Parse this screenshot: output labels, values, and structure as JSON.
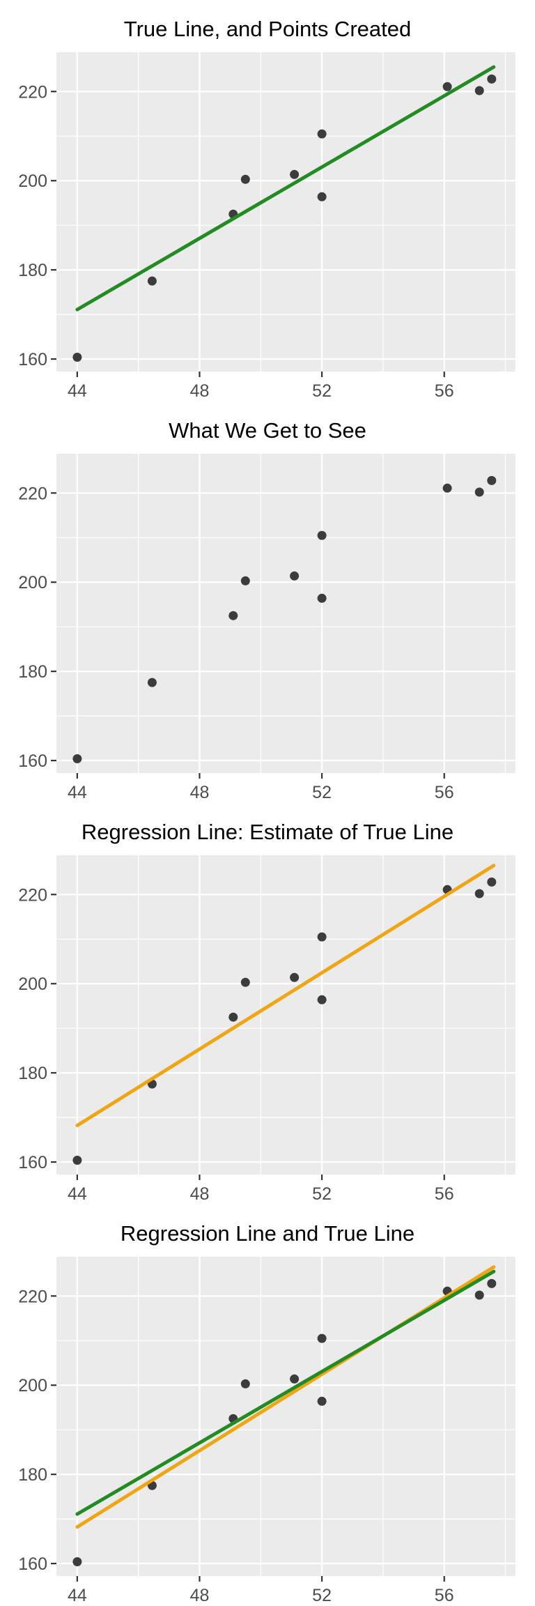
{
  "colors": {
    "true_line": "#228B22",
    "regression_line": "#F0A614",
    "point": "#3C3C3C",
    "panel_bg": "#EBEBEB",
    "grid": "#FFFFFF",
    "tick": "#333333",
    "tick_label": "#4D4D4D",
    "title": "#000000",
    "background": "#FFFFFF"
  },
  "chart_data": [
    {
      "type": "scatter",
      "title": "True Line, and Points Created",
      "xlabel": "",
      "ylabel": "",
      "legend": "none",
      "grid": true,
      "xlim": [
        43.32,
        58.33
      ],
      "ylim": [
        157.2,
        228.8
      ],
      "x_ticks": [
        44,
        48,
        52,
        56
      ],
      "y_ticks": [
        160,
        180,
        200,
        220
      ],
      "x_minor": [
        46,
        50,
        54,
        58
      ],
      "y_minor": [
        170,
        190,
        210
      ],
      "points": [
        [
          44.0,
          160.4
        ],
        [
          46.45,
          177.5
        ],
        [
          49.1,
          192.5
        ],
        [
          49.5,
          200.3
        ],
        [
          51.1,
          201.4
        ],
        [
          52.0,
          210.5
        ],
        [
          52.0,
          196.4
        ],
        [
          56.1,
          221.1
        ],
        [
          57.15,
          220.2
        ],
        [
          57.55,
          222.8
        ]
      ],
      "lines": [
        {
          "name": "true-line",
          "label": "True Line",
          "color": "#228B22",
          "x1": 44.0,
          "y1": 171.1,
          "x2": 57.62,
          "y2": 225.5
        }
      ]
    },
    {
      "type": "scatter",
      "title": "What We Get to See",
      "xlabel": "",
      "ylabel": "",
      "legend": "none",
      "grid": true,
      "xlim": [
        43.32,
        58.33
      ],
      "ylim": [
        157.2,
        228.8
      ],
      "x_ticks": [
        44,
        48,
        52,
        56
      ],
      "y_ticks": [
        160,
        180,
        200,
        220
      ],
      "x_minor": [
        46,
        50,
        54,
        58
      ],
      "y_minor": [
        170,
        190,
        210
      ],
      "points": [
        [
          44.0,
          160.4
        ],
        [
          46.45,
          177.5
        ],
        [
          49.1,
          192.5
        ],
        [
          49.5,
          200.3
        ],
        [
          51.1,
          201.4
        ],
        [
          52.0,
          210.5
        ],
        [
          52.0,
          196.4
        ],
        [
          56.1,
          221.1
        ],
        [
          57.15,
          220.2
        ],
        [
          57.55,
          222.8
        ]
      ],
      "lines": []
    },
    {
      "type": "scatter",
      "title": "Regression Line: Estimate of True Line",
      "xlabel": "",
      "ylabel": "",
      "legend": "none",
      "grid": true,
      "xlim": [
        43.32,
        58.33
      ],
      "ylim": [
        157.2,
        228.8
      ],
      "x_ticks": [
        44,
        48,
        52,
        56
      ],
      "y_ticks": [
        160,
        180,
        200,
        220
      ],
      "x_minor": [
        46,
        50,
        54,
        58
      ],
      "y_minor": [
        170,
        190,
        210
      ],
      "points": [
        [
          44.0,
          160.4
        ],
        [
          46.45,
          177.5
        ],
        [
          49.1,
          192.5
        ],
        [
          49.5,
          200.3
        ],
        [
          51.1,
          201.4
        ],
        [
          52.0,
          210.5
        ],
        [
          52.0,
          196.4
        ],
        [
          56.1,
          221.1
        ],
        [
          57.15,
          220.2
        ],
        [
          57.55,
          222.8
        ]
      ],
      "lines": [
        {
          "name": "regression-line",
          "label": "Regression Line",
          "color": "#F0A614",
          "x1": 44.0,
          "y1": 168.2,
          "x2": 57.62,
          "y2": 226.5
        }
      ]
    },
    {
      "type": "scatter",
      "title": "Regression Line and True Line",
      "xlabel": "",
      "ylabel": "",
      "legend": "none",
      "grid": true,
      "xlim": [
        43.32,
        58.33
      ],
      "ylim": [
        157.2,
        228.8
      ],
      "x_ticks": [
        44,
        48,
        52,
        56
      ],
      "y_ticks": [
        160,
        180,
        200,
        220
      ],
      "x_minor": [
        46,
        50,
        54,
        58
      ],
      "y_minor": [
        170,
        190,
        210
      ],
      "points": [
        [
          44.0,
          160.4
        ],
        [
          46.45,
          177.5
        ],
        [
          49.1,
          192.5
        ],
        [
          49.5,
          200.3
        ],
        [
          51.1,
          201.4
        ],
        [
          52.0,
          210.5
        ],
        [
          52.0,
          196.4
        ],
        [
          56.1,
          221.1
        ],
        [
          57.15,
          220.2
        ],
        [
          57.55,
          222.8
        ]
      ],
      "lines": [
        {
          "name": "regression-line",
          "label": "Regression Line",
          "color": "#F0A614",
          "x1": 44.0,
          "y1": 168.2,
          "x2": 57.62,
          "y2": 226.5
        },
        {
          "name": "true-line",
          "label": "True Line",
          "color": "#228B22",
          "x1": 44.0,
          "y1": 171.1,
          "x2": 57.62,
          "y2": 225.5
        }
      ]
    }
  ]
}
